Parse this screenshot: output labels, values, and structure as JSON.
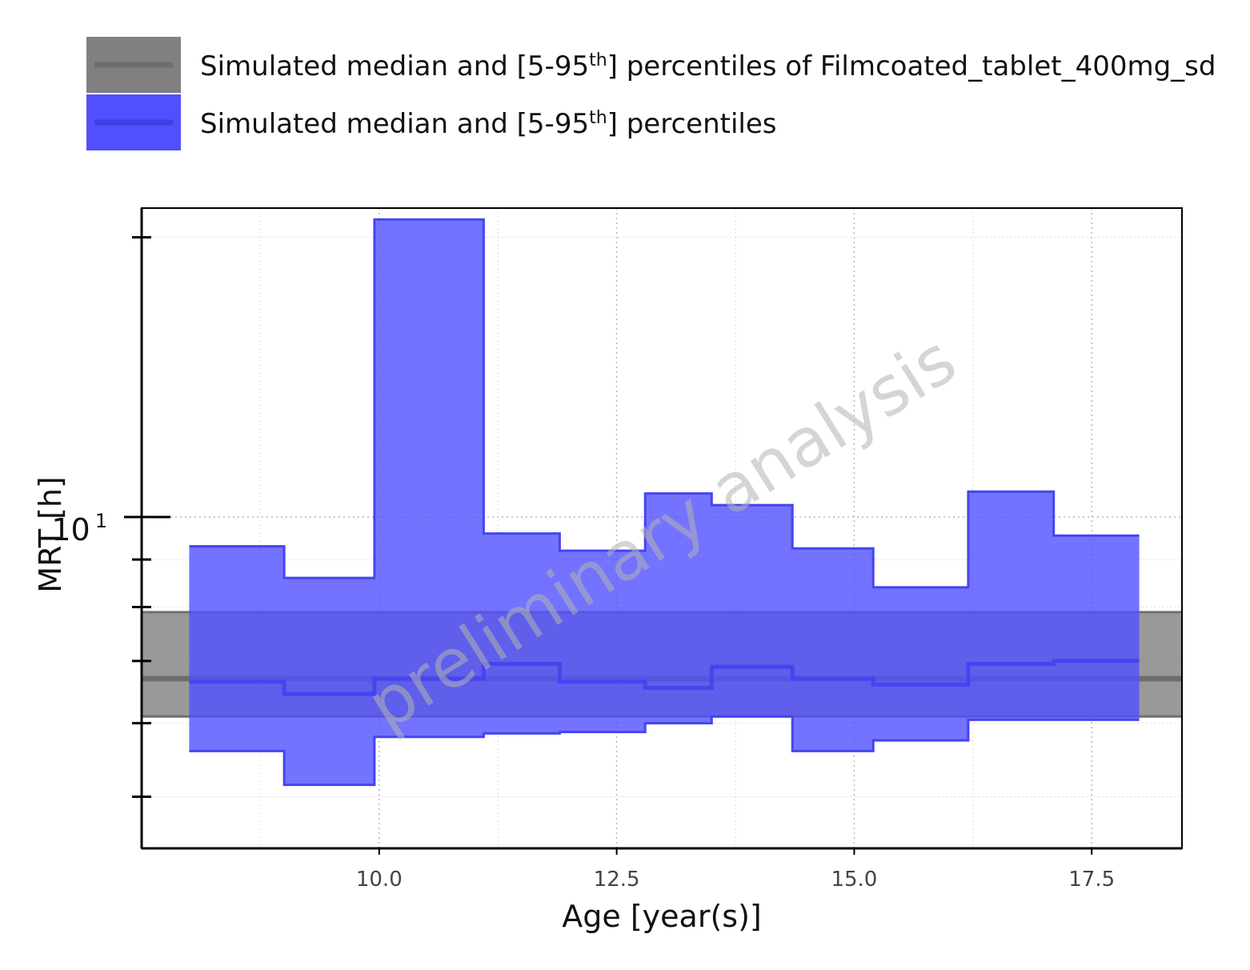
{
  "chart_data": {
    "type": "area",
    "title": "",
    "xlabel": "Age [year(s)]",
    "ylabel": "MRT [h]",
    "xlim": [
      7.5,
      18.45
    ],
    "ylim": [
      4.4,
      21.5
    ],
    "y_scale": "log",
    "x_ticks": [
      10.0,
      12.5,
      15.0,
      17.5
    ],
    "x_tick_labels": [
      "10.0",
      "12.5",
      "15.0",
      "17.5"
    ],
    "y_tick_label": {
      "base": "10",
      "exponent": "1",
      "value": 10
    },
    "y_minor_ticks": [
      5,
      6,
      7,
      8,
      9,
      20
    ],
    "grid": true,
    "legend_position": "top",
    "watermark": "preliminary analysis",
    "series": [
      {
        "name": "Simulated median and [5-95th] percentiles of Filmcoated_tablet_400mg_sd",
        "legend_text": "Simulated median and [5-95",
        "legend_superscript": "th",
        "legend_suffix": "] percentiles of Filmcoated_tablet_400mg_sd",
        "color": "#808080",
        "kind": "reference-band",
        "median": 6.7,
        "lower": 6.1,
        "upper": 7.9
      },
      {
        "name": "Simulated median and [5-95th] percentiles",
        "legend_text": "Simulated median and [5-95",
        "legend_superscript": "th",
        "legend_suffix": "] percentiles",
        "color": "#5050ff",
        "kind": "step-band",
        "bin_edges": [
          8.0,
          9.0,
          9.95,
          11.1,
          11.9,
          12.8,
          13.5,
          14.35,
          15.2,
          16.2,
          17.1,
          18.0
        ],
        "upper": [
          9.3,
          8.6,
          20.9,
          9.6,
          9.2,
          10.6,
          10.3,
          9.25,
          8.4,
          10.65,
          9.55
        ],
        "median": [
          6.65,
          6.45,
          6.7,
          6.95,
          6.65,
          6.55,
          6.9,
          6.7,
          6.6,
          6.95,
          7.0
        ],
        "lower": [
          5.6,
          5.15,
          5.8,
          5.85,
          5.87,
          6.0,
          6.1,
          5.6,
          5.75,
          6.05,
          6.05
        ]
      }
    ]
  }
}
